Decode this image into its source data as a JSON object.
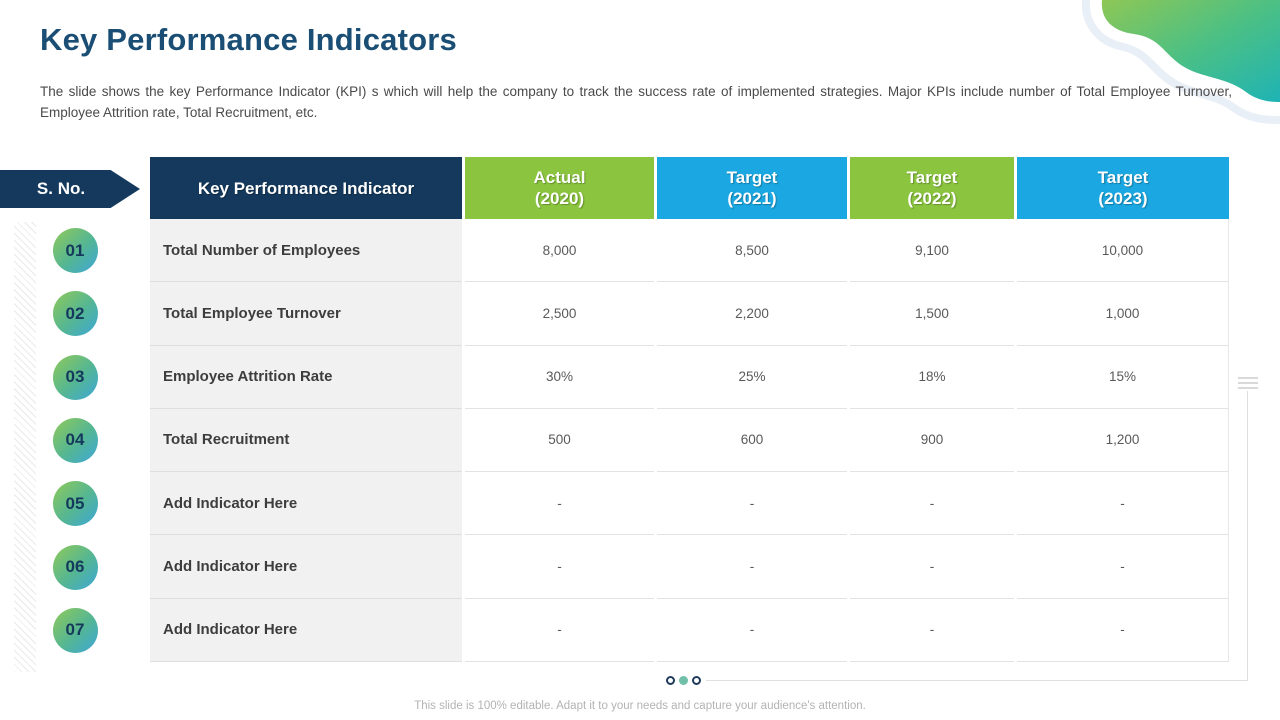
{
  "slide": {
    "title": "Key Performance Indicators",
    "description": "The slide shows the key Performance Indicator (KPI) s which will help the company to track the success rate of implemented strategies. Major KPIs include number of Total Employee Turnover, Employee Attrition rate, Total Recruitment, etc.",
    "footer_note": "This slide is 100% editable. Adapt it to your needs and capture your audience's attention."
  },
  "serial": {
    "label": "S. No.",
    "numbers": [
      "01",
      "02",
      "03",
      "04",
      "05",
      "06",
      "07"
    ]
  },
  "table": {
    "indicator_header": "Key Performance Indicator",
    "year_headers": [
      {
        "line1": "Actual",
        "line2": "(2020)",
        "scheme": "green"
      },
      {
        "line1": "Target",
        "line2": "(2021)",
        "scheme": "blue"
      },
      {
        "line1": "Target",
        "line2": "(2022)",
        "scheme": "green"
      },
      {
        "line1": "Target",
        "line2": "(2023)",
        "scheme": "blue"
      }
    ],
    "rows": [
      {
        "indicator": "Total Number of Employees",
        "values": [
          "8,000",
          "8,500",
          "9,100",
          "10,000"
        ]
      },
      {
        "indicator": "Total Employee Turnover",
        "values": [
          "2,500",
          "2,200",
          "1,500",
          "1,000"
        ]
      },
      {
        "indicator": "Employee Attrition Rate",
        "values": [
          "30%",
          "25%",
          "18%",
          "15%"
        ]
      },
      {
        "indicator": "Total Recruitment",
        "values": [
          "500",
          "600",
          "900",
          "1,200"
        ]
      },
      {
        "indicator": "Add Indicator Here",
        "values": [
          "-",
          "-",
          "-",
          "-"
        ]
      },
      {
        "indicator": "Add Indicator Here",
        "values": [
          "-",
          "-",
          "-",
          "-"
        ]
      },
      {
        "indicator": "Add Indicator Here",
        "values": [
          "-",
          "-",
          "-",
          "-"
        ]
      }
    ]
  },
  "pagination": {
    "dots": [
      "inactive",
      "active",
      "inactive"
    ]
  },
  "colors": {
    "navy": "#14395c",
    "green": "#8bc53f",
    "blue": "#1ba7e1",
    "title_blue": "#1b4e74",
    "active_dot_teal": "#6fbfa9",
    "wave_green": "#8ec755",
    "wave_teal": "#1fb3b5"
  }
}
